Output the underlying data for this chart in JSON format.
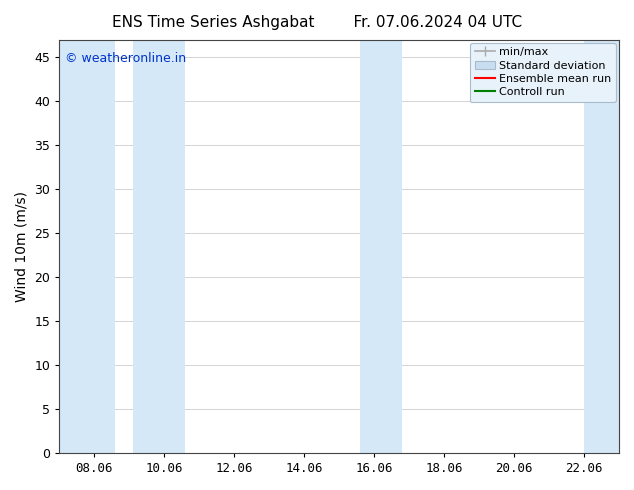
{
  "title_left": "ENS Time Series Ashgabat",
  "title_right": "Fr. 07.06.2024 04 UTC",
  "ylabel": "Wind 10m (m/s)",
  "ylim": [
    0,
    47
  ],
  "yticks": [
    0,
    5,
    10,
    15,
    20,
    25,
    30,
    35,
    40,
    45
  ],
  "xtick_labels": [
    "08.06",
    "10.06",
    "12.06",
    "14.06",
    "16.06",
    "18.06",
    "20.06",
    "22.06"
  ],
  "xtick_positions": [
    1,
    3,
    5,
    7,
    9,
    11,
    13,
    15
  ],
  "x_min": 0.0,
  "x_max": 16.0,
  "bg_color": "#ffffff",
  "plot_bg_color": "#ffffff",
  "shaded_color": "#d4e8f8",
  "bands": [
    [
      0.0,
      1.6
    ],
    [
      2.1,
      3.6
    ],
    [
      8.6,
      9.8
    ],
    [
      15.0,
      16.0
    ]
  ],
  "grid_color": "#cccccc",
  "watermark_text": "© weatheronline.in",
  "watermark_color": "#0033cc",
  "legend_minmax_color": "#aaaaaa",
  "legend_stddev_color": "#c8ddf0",
  "legend_mean_color": "#ff0000",
  "legend_ctrl_color": "#008000",
  "title_fontsize": 11,
  "axis_label_fontsize": 10,
  "tick_fontsize": 9,
  "legend_fontsize": 8,
  "watermark_fontsize": 9
}
